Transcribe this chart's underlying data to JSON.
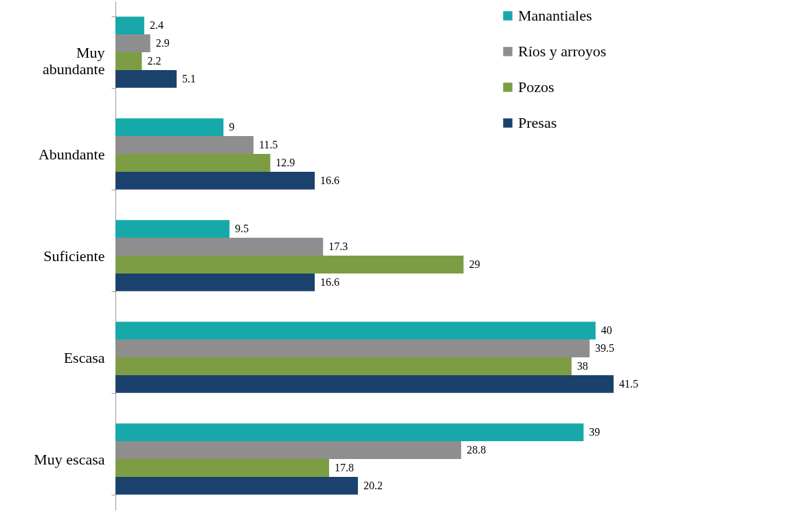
{
  "chart_data": {
    "type": "bar",
    "orientation": "horizontal",
    "categories": [
      "Muy abundante",
      "Abundante",
      "Suficiente",
      "Escasa",
      "Muy escasa"
    ],
    "series": [
      {
        "name": "Manantiales",
        "color": "#17a9a9",
        "values": [
          2.4,
          9,
          9.5,
          40,
          39
        ]
      },
      {
        "name": "Ríos y arroyos",
        "color": "#8e8e8e",
        "values": [
          2.9,
          11.5,
          17.3,
          39.5,
          28.8
        ]
      },
      {
        "name": "Pozos",
        "color": "#7d9d44",
        "values": [
          2.2,
          12.9,
          29,
          38,
          17.8
        ]
      },
      {
        "name": "Presas",
        "color": "#1b426d",
        "values": [
          5.1,
          16.6,
          16.6,
          41.5,
          20.2
        ]
      }
    ],
    "data_labels": true,
    "legend": "top right",
    "grid": false
  }
}
